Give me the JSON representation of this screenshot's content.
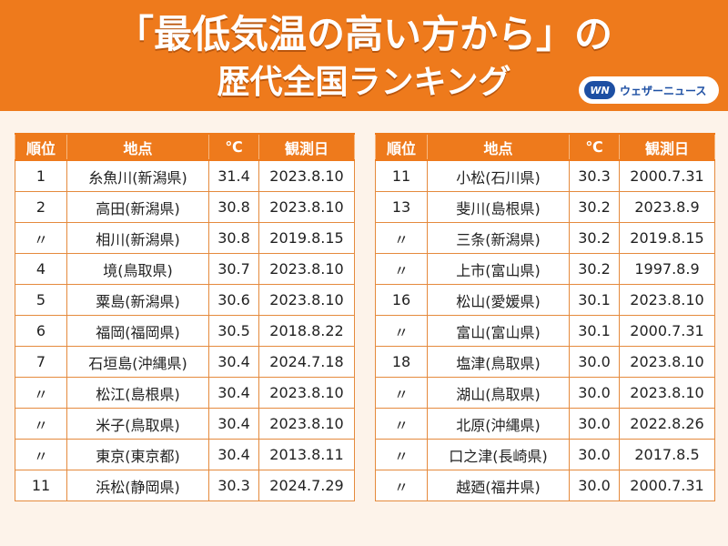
{
  "header": {
    "title_line1": "「最低気温の高い方から」の",
    "title_line2": "歴代全国ランキング",
    "logo_mark": "WN",
    "logo_text": "ウェザーニュース"
  },
  "columns": {
    "rank": "順位",
    "place": "地点",
    "temp": "℃",
    "date": "観測日"
  },
  "left_table": [
    {
      "rank": "1",
      "place": "糸魚川(新潟県)",
      "temp": "31.4",
      "date": "2023.8.10"
    },
    {
      "rank": "2",
      "place": "高田(新潟県)",
      "temp": "30.8",
      "date": "2023.8.10"
    },
    {
      "rank": "〃",
      "place": "相川(新潟県)",
      "temp": "30.8",
      "date": "2019.8.15"
    },
    {
      "rank": "4",
      "place": "境(鳥取県)",
      "temp": "30.7",
      "date": "2023.8.10"
    },
    {
      "rank": "5",
      "place": "粟島(新潟県)",
      "temp": "30.6",
      "date": "2023.8.10"
    },
    {
      "rank": "6",
      "place": "福岡(福岡県)",
      "temp": "30.5",
      "date": "2018.8.22"
    },
    {
      "rank": "7",
      "place": "石垣島(沖縄県)",
      "temp": "30.4",
      "date": "2024.7.18"
    },
    {
      "rank": "〃",
      "place": "松江(島根県)",
      "temp": "30.4",
      "date": "2023.8.10"
    },
    {
      "rank": "〃",
      "place": "米子(鳥取県)",
      "temp": "30.4",
      "date": "2023.8.10"
    },
    {
      "rank": "〃",
      "place": "東京(東京都)",
      "temp": "30.4",
      "date": "2013.8.11"
    },
    {
      "rank": "11",
      "place": "浜松(静岡県)",
      "temp": "30.3",
      "date": "2024.7.29"
    }
  ],
  "right_table": [
    {
      "rank": "11",
      "place": "小松(石川県)",
      "temp": "30.3",
      "date": "2000.7.31"
    },
    {
      "rank": "13",
      "place": "斐川(島根県)",
      "temp": "30.2",
      "date": "2023.8.9"
    },
    {
      "rank": "〃",
      "place": "三条(新潟県)",
      "temp": "30.2",
      "date": "2019.8.15"
    },
    {
      "rank": "〃",
      "place": "上市(富山県)",
      "temp": "30.2",
      "date": "1997.8.9"
    },
    {
      "rank": "16",
      "place": "松山(愛媛県)",
      "temp": "30.1",
      "date": "2023.8.10"
    },
    {
      "rank": "〃",
      "place": "富山(富山県)",
      "temp": "30.1",
      "date": "2000.7.31"
    },
    {
      "rank": "18",
      "place": "塩津(鳥取県)",
      "temp": "30.0",
      "date": "2023.8.10"
    },
    {
      "rank": "〃",
      "place": "湖山(鳥取県)",
      "temp": "30.0",
      "date": "2023.8.10"
    },
    {
      "rank": "〃",
      "place": "北原(沖縄県)",
      "temp": "30.0",
      "date": "2022.8.26"
    },
    {
      "rank": "〃",
      "place": "口之津(長崎県)",
      "temp": "30.0",
      "date": "2017.8.5"
    },
    {
      "rank": "〃",
      "place": "越廼(福井県)",
      "temp": "30.0",
      "date": "2000.7.31"
    }
  ]
}
